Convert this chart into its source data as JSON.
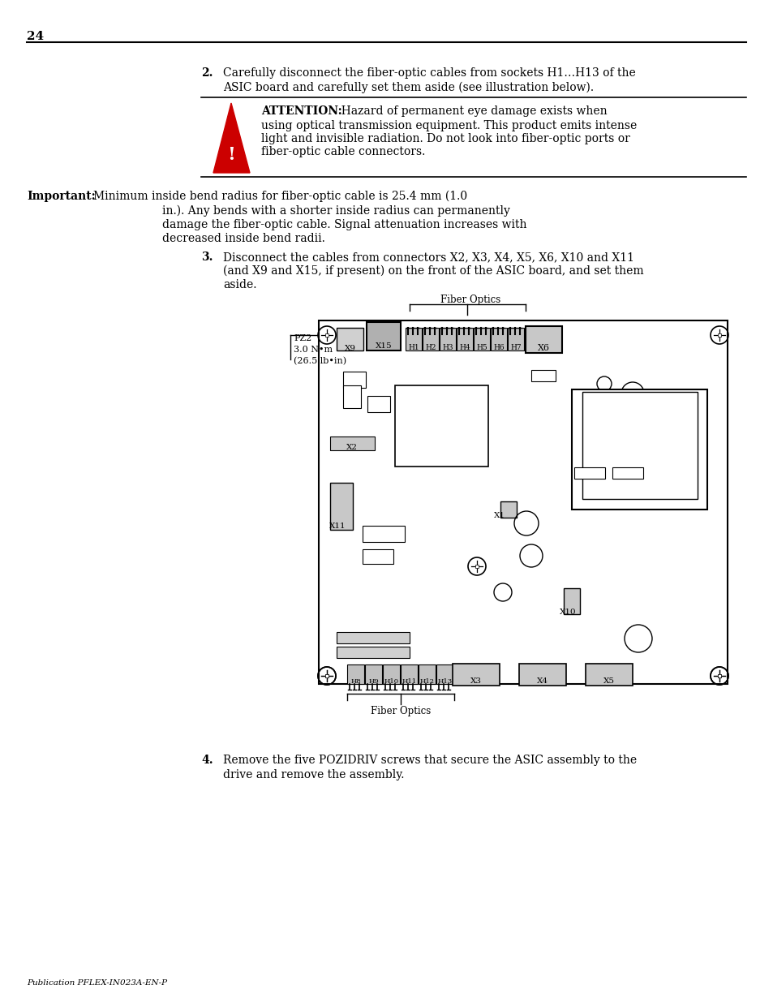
{
  "page_number": "24",
  "bg_color": "#ffffff",
  "text_color": "#000000",
  "footer_text": "Publication PFLEX-IN023A-EN-P",
  "pz2_label": "PZ2\n3.0 N•m\n(26.5 lb•in)"
}
